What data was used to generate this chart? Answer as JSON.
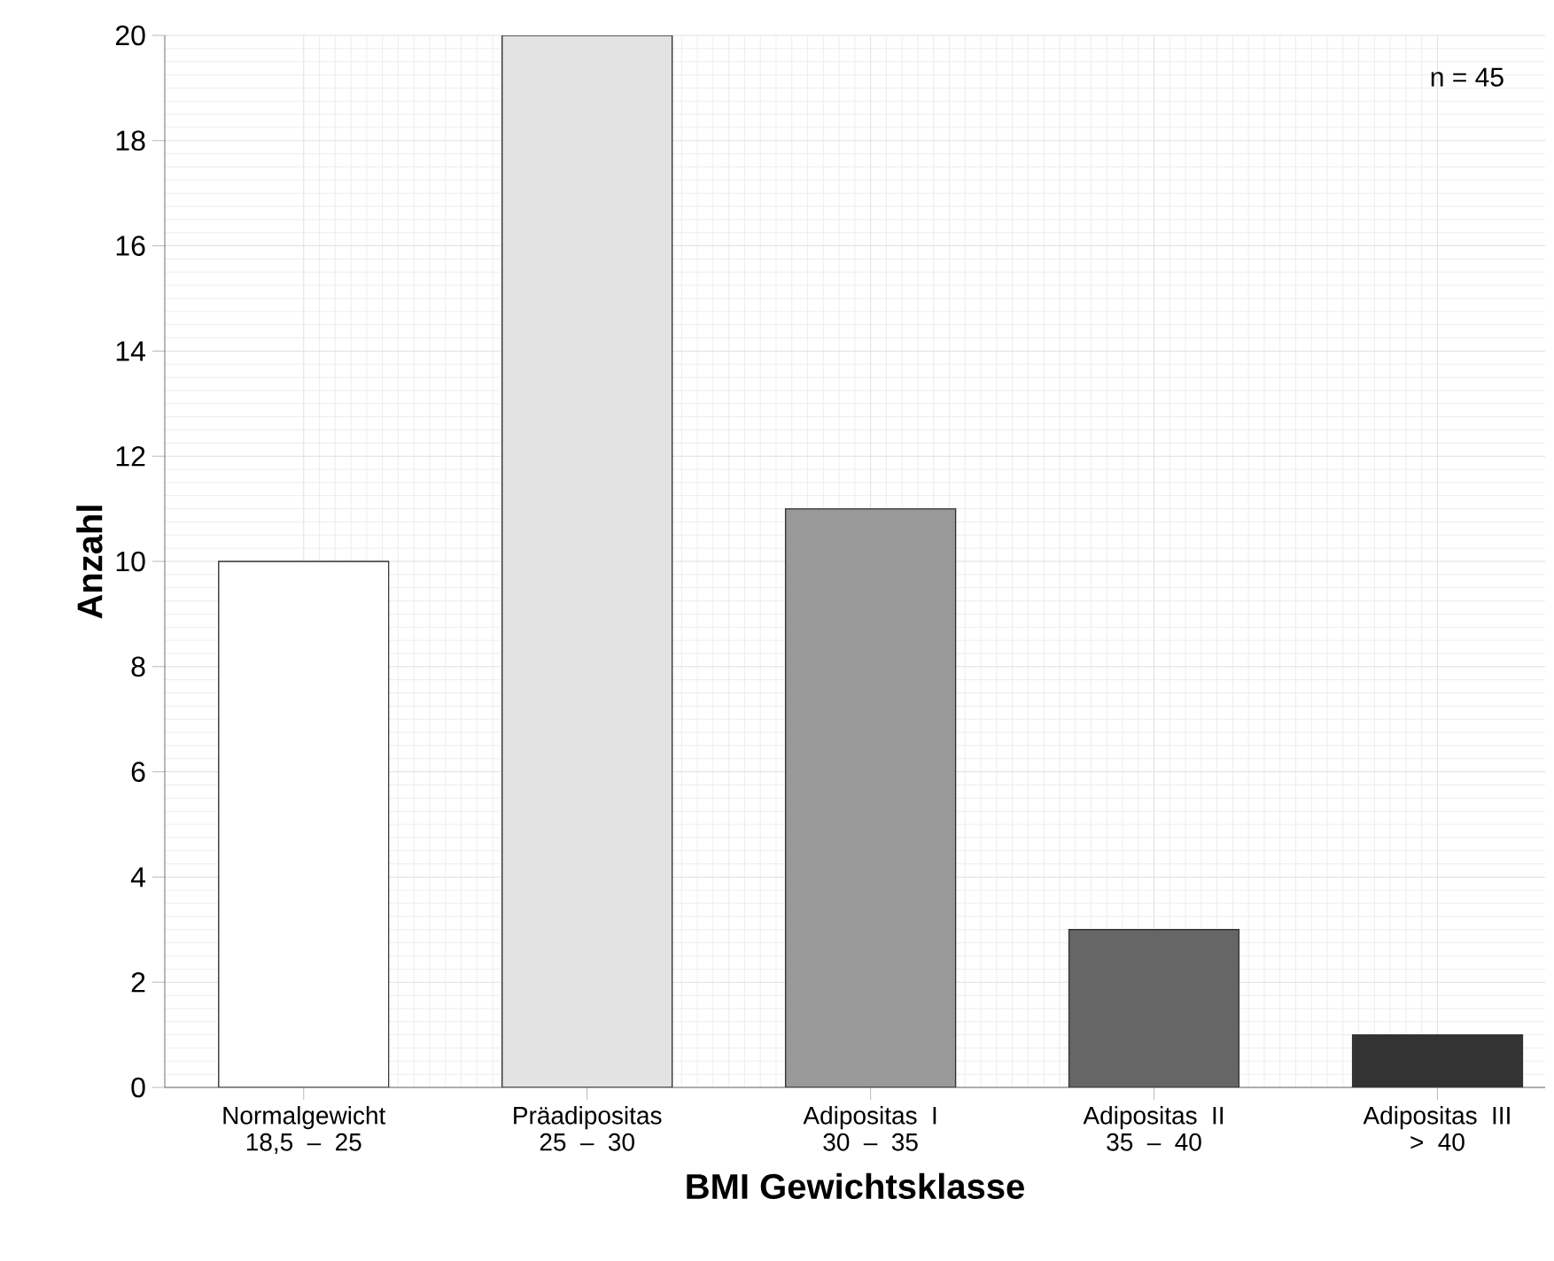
{
  "chart_data": {
    "type": "bar",
    "categories": [
      "Normalgewicht 18,5 – 25",
      "Präadipositas 25 – 30",
      "Adipositas I 30 – 35",
      "Adipositas II 35 – 40",
      "Adipositas III > 40"
    ],
    "values": [
      10,
      20,
      11,
      3,
      1
    ],
    "colors": [
      "#ffffff",
      "#e3e3e3",
      "#999999",
      "#666666",
      "#333333"
    ],
    "xlabel": "BMI Gewichtsklasse",
    "ylabel": "Anzahl",
    "ylim": [
      0,
      20
    ],
    "yticks": [
      0,
      2,
      4,
      6,
      8,
      10,
      12,
      14,
      16,
      18,
      20
    ],
    "grid": true,
    "legend": false,
    "annotations": [
      "n = 45"
    ]
  }
}
